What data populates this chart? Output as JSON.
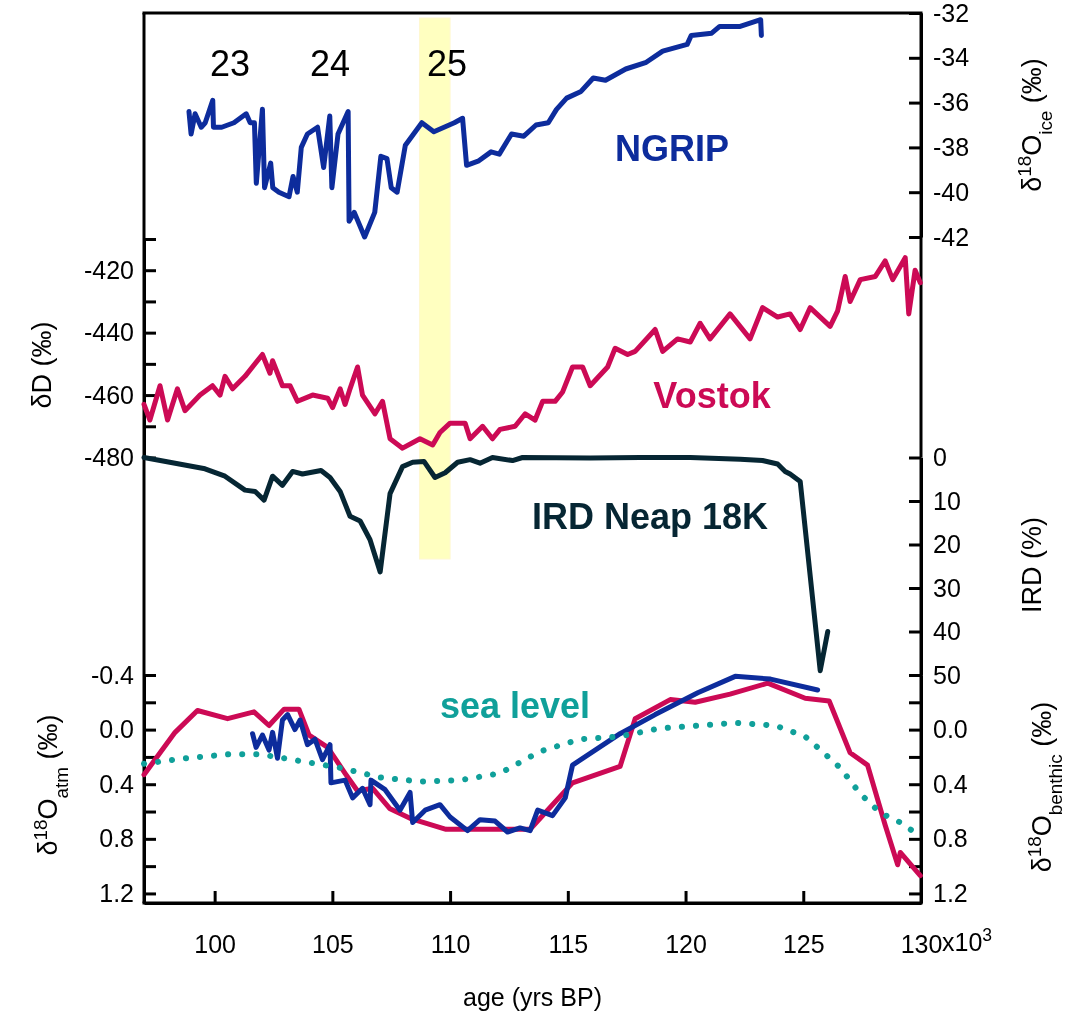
{
  "chart_data": [
    {
      "type": "line",
      "y2label": "δ$^{18}$O$_{ice}$ (‰)",
      "xlim": [
        97,
        130
      ],
      "tick_labels": "y",
      "y2lim": [
        -42,
        -32
      ],
      "y2ticks": [
        -32,
        -34,
        -36,
        -38,
        -40,
        -42
      ],
      "bands": [
        {
          "axis": "x",
          "from": 108.7,
          "to": 110.0,
          "color": "#ffffc0"
        }
      ],
      "annotations": [
        "23",
        "24",
        "25"
      ],
      "series": [
        {
          "name": "NGRIP",
          "color": "#0d2c9c",
          "axis": "y2",
          "x": [
            98.91,
            99.0,
            99.17,
            99.43,
            99.6,
            99.92,
            99.95,
            100.3,
            100.82,
            101.34,
            101.51,
            101.69,
            101.77,
            102.03,
            102.12,
            102.38,
            102.47,
            102.73,
            103.16,
            103.33,
            103.51,
            103.68,
            103.94,
            104.37,
            104.63,
            104.89,
            104.98,
            105.24,
            105.67,
            105.71,
            105.93,
            106.37,
            106.8,
            107.06,
            107.32,
            107.5,
            107.75,
            108.1,
            108.8,
            109.31,
            110.18,
            110.53,
            110.7,
            111.22,
            111.74,
            112.09,
            112.61,
            113.13,
            113.65,
            114.17,
            114.52,
            114.95,
            115.56,
            116.08,
            116.6,
            117.46,
            118.33,
            119.03,
            120.07,
            120.24,
            121.11,
            121.45,
            122.32,
            123.19,
            123.22
          ],
          "values": [
            -36.4,
            -37.4,
            -36.5,
            -37.1,
            -36.9,
            -35.9,
            -37.1,
            -37.1,
            -36.9,
            -36.5,
            -36.9,
            -36.9,
            -39.6,
            -36.3,
            -39.8,
            -38.7,
            -39.8,
            -40.0,
            -40.2,
            -39.3,
            -40.0,
            -38.0,
            -37.4,
            -37.1,
            -38.9,
            -36.6,
            -39.8,
            -37.4,
            -36.4,
            -41.3,
            -40.9,
            -42.0,
            -40.9,
            -38.4,
            -38.5,
            -39.8,
            -40.0,
            -37.9,
            -36.9,
            -37.3,
            -36.9,
            -36.7,
            -38.8,
            -38.6,
            -38.2,
            -38.3,
            -37.4,
            -37.5,
            -37.0,
            -36.9,
            -36.3,
            -35.8,
            -35.5,
            -34.9,
            -35.0,
            -34.5,
            -34.2,
            -33.7,
            -33.4,
            -33.0,
            -32.9,
            -32.6,
            -32.6,
            -32.3,
            -33.0
          ]
        }
      ]
    },
    {
      "type": "line",
      "ylabel": "δD (‰)",
      "xlim": [
        97,
        130
      ],
      "tick_labels": "y",
      "ylim": [
        -480,
        -410
      ],
      "yticks": [
        {
          "value": -410,
          "label": null
        },
        -420,
        {
          "value": -430,
          "label": null
        },
        -440,
        {
          "value": -450,
          "label": null
        },
        -460,
        {
          "value": -470,
          "label": null
        },
        -480
      ],
      "series": [
        {
          "name": "Vostok",
          "color": "#cc0a55",
          "x": [
            97.0,
            97.25,
            97.68,
            98.0,
            98.42,
            98.74,
            99.38,
            99.91,
            100.23,
            100.44,
            100.76,
            101.29,
            102.03,
            102.35,
            102.46,
            102.88,
            103.2,
            103.52,
            104.16,
            104.8,
            105.01,
            105.33,
            105.54,
            105.75,
            106.07,
            106.28,
            106.81,
            107.13,
            107.45,
            107.98,
            108.72,
            109.26,
            109.57,
            110.0,
            110.64,
            110.85,
            111.38,
            111.8,
            112.12,
            112.76,
            113.19,
            113.61,
            113.93,
            114.46,
            114.78,
            115.2,
            115.63,
            115.95,
            116.69,
            117.01,
            117.54,
            117.86,
            118.71,
            119.03,
            119.66,
            120.2,
            120.62,
            121.04,
            121.89,
            122.74,
            123.27,
            123.91,
            124.44,
            124.87,
            125.29,
            126.14,
            126.46,
            126.78,
            126.99,
            127.42,
            128.06,
            128.48,
            128.8,
            129.33,
            129.48,
            129.75,
            129.97
          ],
          "values": [
            -463,
            -468,
            -457,
            -468,
            -458,
            -465,
            -460,
            -457,
            -460,
            -454,
            -458,
            -454,
            -447,
            -453,
            -449,
            -457,
            -457,
            -462,
            -460,
            -461,
            -464,
            -458,
            -463,
            -458,
            -451,
            -460,
            -466,
            -462,
            -474,
            -477,
            -474,
            -476,
            -472,
            -469,
            -469,
            -474,
            -470,
            -474,
            -471,
            -470,
            -466,
            -468,
            -462,
            -462,
            -459,
            -451,
            -451,
            -457,
            -451,
            -445,
            -447,
            -446,
            -439,
            -446,
            -442,
            -443,
            -437,
            -442,
            -434,
            -442,
            -432,
            -435,
            -434,
            -439,
            -432,
            -438,
            -433,
            -422,
            -430,
            -423,
            -422,
            -417,
            -423,
            -416,
            -434,
            -420,
            -424
          ]
        }
      ]
    },
    {
      "type": "line",
      "y2label": "IRD (%)",
      "xlim": [
        97,
        130
      ],
      "tick_labels": "y",
      "y2lim": [
        50,
        0
      ],
      "y2ticks": [
        0,
        10,
        20,
        30,
        40,
        50
      ],
      "series": [
        {
          "name": "IRD Neap 18K",
          "color": "#062633",
          "axis": "y2",
          "x": [
            97.0,
            99.59,
            100.44,
            101.29,
            101.72,
            102.1,
            102.46,
            102.88,
            103.31,
            103.73,
            104.52,
            104.9,
            105.33,
            105.75,
            106.18,
            106.6,
            107.03,
            107.45,
            107.98,
            108.41,
            108.89,
            109.36,
            109.79,
            110.32,
            110.85,
            111.27,
            111.8,
            112.65,
            113.08,
            115.95,
            118.07,
            120.2,
            122.32,
            123.27,
            123.91,
            124.23,
            124.44,
            124.87,
            125.72,
            126.04
          ],
          "values": [
            0,
            2.6,
            4.3,
            7.5,
            7.8,
            9.8,
            4.3,
            6.4,
            3.2,
            3.8,
            3.0,
            4.6,
            7.8,
            13.5,
            14.6,
            18.9,
            26.3,
            8.3,
            2.1,
            1.1,
            0.9,
            4.6,
            3.5,
            1.1,
            0.5,
            1.3,
            0,
            0.7,
            0,
            0.1,
            0,
            0,
            0.4,
            0.7,
            1.5,
            3.2,
            3.8,
            5.5,
            49,
            40
          ]
        }
      ]
    },
    {
      "type": "line",
      "xlabel": "age (yrs BP)",
      "ylabel": "δ$^{18}$O$_{atm}$ (‰)",
      "y2label": "δ$^{18}$O$_{benthic}$ (‰)",
      "xlim": [
        97,
        130
      ],
      "xticks": [
        100,
        105,
        110,
        115,
        120,
        125,
        130
      ],
      "ylim": [
        1.27,
        -0.4
      ],
      "yticks": [
        -0.4,
        {
          "value": -0.2,
          "label": null
        },
        {
          "value": 0,
          "label": "0.0"
        },
        {
          "value": 0.2,
          "label": null
        },
        0.4,
        {
          "value": 0.6,
          "label": null
        },
        0.8,
        {
          "value": 1.0,
          "label": null
        },
        1.2
      ],
      "y2lim": [
        1.27,
        -0.4
      ],
      "y2ticks": [
        {
          "value": -0.4,
          "label": null
        },
        {
          "value": -0.2,
          "label": null
        },
        {
          "value": 0,
          "label": "0.0"
        },
        {
          "value": 0.2,
          "label": null
        },
        0.4,
        {
          "value": 0.6,
          "label": null
        },
        0.8,
        {
          "value": 1.0,
          "label": null
        },
        1.2
      ],
      "annotations": [
        "x10$^{3}$"
      ],
      "series": [
        {
          "color": "#cc0a55",
          "x": [
            97.0,
            98.32,
            99.27,
            100.55,
            101.67,
            102.31,
            102.95,
            103.58,
            104.01,
            104.8,
            105.54,
            106.07,
            106.71,
            107.45,
            108.3,
            109.83,
            111.7,
            113.4,
            115.2,
            117.22,
            117.86,
            119.35,
            120.41,
            121.89,
            123.49,
            125.08,
            126.1,
            126.99,
            127.73,
            128.48,
            129.01,
            129.12,
            129.97
          ],
          "values": [
            0.33,
            0.02,
            -0.14,
            -0.08,
            -0.13,
            -0.03,
            -0.15,
            -0.15,
            0.04,
            0.13,
            0.32,
            0.45,
            0.43,
            0.58,
            0.65,
            0.73,
            0.73,
            0.73,
            0.39,
            0.27,
            -0.08,
            -0.22,
            -0.2,
            -0.26,
            -0.34,
            -0.23,
            -0.21,
            0.17,
            0.26,
            0.7,
            0.99,
            0.9,
            1.07
          ]
        },
        {
          "color": "#0d2c9c",
          "x": [
            101.61,
            101.76,
            102.03,
            102.31,
            102.46,
            102.67,
            102.88,
            103.1,
            103.41,
            103.63,
            103.94,
            104.26,
            104.58,
            104.9,
            104.94,
            105.54,
            105.86,
            106.28,
            106.6,
            106.64,
            107.24,
            107.87,
            108.3,
            108.41,
            108.94,
            109.57,
            110.0,
            110.74,
            111.27,
            111.91,
            112.44,
            112.97,
            113.4,
            113.72,
            114.35,
            114.89,
            115.2,
            117.22,
            118.71,
            120.52,
            122.11,
            123.61,
            125.61
          ],
          "values": [
            0.03,
            0.13,
            0.04,
            0.15,
            0.02,
            0.21,
            -0.07,
            -0.11,
            0.0,
            -0.07,
            0.11,
            0.07,
            0.22,
            0.11,
            0.39,
            0.37,
            0.5,
            0.43,
            0.55,
            0.37,
            0.44,
            0.59,
            0.46,
            0.68,
            0.59,
            0.55,
            0.64,
            0.74,
            0.66,
            0.67,
            0.75,
            0.72,
            0.74,
            0.59,
            0.63,
            0.5,
            0.26,
            0.03,
            -0.11,
            -0.27,
            -0.39,
            -0.37,
            -0.29
          ]
        },
        {
          "name": "sea level",
          "color": "#10a09a",
          "axis": "y2",
          "line_style": "dotted",
          "x": [
            97.0,
            98.74,
            100.65,
            101.93,
            103.63,
            105.33,
            107.03,
            108.72,
            110.42,
            112.12,
            113.82,
            115.52,
            117.22,
            118.92,
            120.62,
            122.11,
            123.81,
            125.08,
            125.93,
            126.57,
            127.42,
            128.27,
            129.12,
            129.71
          ],
          "values": [
            0.25,
            0.21,
            0.18,
            0.18,
            0.23,
            0.28,
            0.35,
            0.38,
            0.37,
            0.32,
            0.16,
            0.07,
            0.05,
            -0.01,
            -0.03,
            -0.05,
            -0.03,
            0.05,
            0.18,
            0.28,
            0.47,
            0.61,
            0.68,
            0.75
          ]
        }
      ]
    }
  ]
}
